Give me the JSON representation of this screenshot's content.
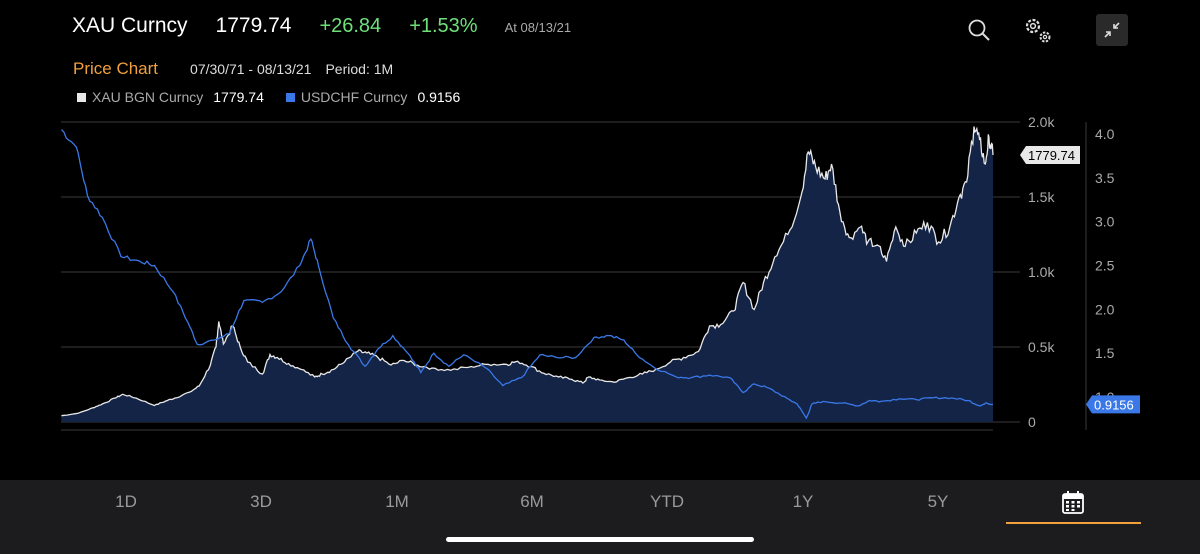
{
  "header": {
    "ticker": "XAU Curncy",
    "last": "1779.74",
    "change": "+26.84",
    "pct_change": "+1.53%",
    "as_of": "At 08/13/21"
  },
  "subheader": {
    "title": "Price Chart",
    "date_range": "07/30/71 - 08/13/21",
    "period": "Period: 1M"
  },
  "legend": [
    {
      "name": "XAU BGN Curncy",
      "value": "1779.74",
      "color": "#e8e8e8"
    },
    {
      "name": "USDCHF Curncy",
      "value": "0.9156",
      "color": "#3a78e8"
    }
  ],
  "chart_data": {
    "type": "line",
    "x_range": [
      1971.58,
      2021.62
    ],
    "grid": "horizontal gridlines",
    "series": [
      {
        "name": "XAU BGN Curncy",
        "axis": "left",
        "filled": true,
        "color": "#e8e8e8",
        "fill": "#132447",
        "ylim": [
          0,
          2000
        ],
        "points": [
          [
            1971.6,
            42
          ],
          [
            1972.5,
            58
          ],
          [
            1973.3,
            95
          ],
          [
            1973.8,
            120
          ],
          [
            1974.5,
            160
          ],
          [
            1974.9,
            185
          ],
          [
            1975.6,
            160
          ],
          [
            1976.6,
            110
          ],
          [
            1977.2,
            140
          ],
          [
            1977.7,
            160
          ],
          [
            1978.5,
            200
          ],
          [
            1979.0,
            240
          ],
          [
            1979.6,
            380
          ],
          [
            1979.9,
            500
          ],
          [
            1980.05,
            670
          ],
          [
            1980.3,
            520
          ],
          [
            1980.8,
            640
          ],
          [
            1981.2,
            500
          ],
          [
            1981.6,
            400
          ],
          [
            1982.4,
            320
          ],
          [
            1982.8,
            450
          ],
          [
            1983.2,
            430
          ],
          [
            1983.8,
            390
          ],
          [
            1984.5,
            350
          ],
          [
            1985.2,
            300
          ],
          [
            1985.6,
            320
          ],
          [
            1986.2,
            350
          ],
          [
            1986.8,
            400
          ],
          [
            1987.5,
            470
          ],
          [
            1988.0,
            460
          ],
          [
            1988.6,
            430
          ],
          [
            1989.3,
            380
          ],
          [
            1990.0,
            410
          ],
          [
            1990.7,
            380
          ],
          [
            1991.5,
            360
          ],
          [
            1992.5,
            345
          ],
          [
            1993.6,
            370
          ],
          [
            1994.5,
            385
          ],
          [
            1995.5,
            385
          ],
          [
            1996.1,
            405
          ],
          [
            1996.8,
            370
          ],
          [
            1997.5,
            325
          ],
          [
            1998.3,
            300
          ],
          [
            1999.0,
            285
          ],
          [
            1999.6,
            260
          ],
          [
            1999.9,
            300
          ],
          [
            2000.5,
            280
          ],
          [
            2001.3,
            265
          ],
          [
            2002.0,
            295
          ],
          [
            2002.8,
            320
          ],
          [
            2003.5,
            350
          ],
          [
            2004.3,
            400
          ],
          [
            2005.0,
            430
          ],
          [
            2005.8,
            470
          ],
          [
            2006.4,
            640
          ],
          [
            2007.0,
            650
          ],
          [
            2007.7,
            740
          ],
          [
            2008.2,
            930
          ],
          [
            2008.8,
            750
          ],
          [
            2009.3,
            930
          ],
          [
            2009.9,
            1100
          ],
          [
            2010.6,
            1250
          ],
          [
            2011.3,
            1500
          ],
          [
            2011.7,
            1800
          ],
          [
            2012.1,
            1700
          ],
          [
            2012.6,
            1620
          ],
          [
            2012.95,
            1720
          ],
          [
            2013.4,
            1400
          ],
          [
            2013.9,
            1230
          ],
          [
            2014.5,
            1300
          ],
          [
            2014.9,
            1200
          ],
          [
            2015.4,
            1180
          ],
          [
            2015.9,
            1070
          ],
          [
            2016.4,
            1300
          ],
          [
            2016.9,
            1170
          ],
          [
            2017.5,
            1260
          ],
          [
            2018.1,
            1330
          ],
          [
            2018.7,
            1200
          ],
          [
            2019.3,
            1300
          ],
          [
            2019.8,
            1500
          ],
          [
            2020.2,
            1600
          ],
          [
            2020.6,
            1970
          ],
          [
            2020.9,
            1880
          ],
          [
            2021.2,
            1720
          ],
          [
            2021.4,
            1900
          ],
          [
            2021.62,
            1780
          ]
        ]
      },
      {
        "name": "USDCHF Curncy",
        "axis": "right",
        "filled": false,
        "color": "#3a78e8",
        "ylim": [
          0.9,
          4.1
        ],
        "points": [
          [
            1971.6,
            4.05
          ],
          [
            1972.4,
            3.85
          ],
          [
            1973.0,
            3.3
          ],
          [
            1973.8,
            3.05
          ],
          [
            1974.8,
            2.6
          ],
          [
            1975.8,
            2.55
          ],
          [
            1976.6,
            2.5
          ],
          [
            1977.6,
            2.2
          ],
          [
            1978.4,
            1.85
          ],
          [
            1978.9,
            1.6
          ],
          [
            1979.8,
            1.65
          ],
          [
            1980.6,
            1.72
          ],
          [
            1981.4,
            2.1
          ],
          [
            1982.4,
            2.08
          ],
          [
            1983.4,
            2.2
          ],
          [
            1984.4,
            2.5
          ],
          [
            1985.0,
            2.8
          ],
          [
            1985.4,
            2.5
          ],
          [
            1986.2,
            1.9
          ],
          [
            1987.0,
            1.6
          ],
          [
            1987.9,
            1.35
          ],
          [
            1988.6,
            1.55
          ],
          [
            1989.4,
            1.7
          ],
          [
            1990.2,
            1.5
          ],
          [
            1990.9,
            1.28
          ],
          [
            1991.6,
            1.5
          ],
          [
            1992.4,
            1.35
          ],
          [
            1993.2,
            1.48
          ],
          [
            1994.4,
            1.33
          ],
          [
            1995.3,
            1.13
          ],
          [
            1996.3,
            1.22
          ],
          [
            1997.3,
            1.48
          ],
          [
            1998.2,
            1.45
          ],
          [
            1999.2,
            1.45
          ],
          [
            2000.2,
            1.68
          ],
          [
            2001.0,
            1.7
          ],
          [
            2001.8,
            1.65
          ],
          [
            2002.5,
            1.48
          ],
          [
            2003.4,
            1.34
          ],
          [
            2004.6,
            1.23
          ],
          [
            2005.4,
            1.22
          ],
          [
            2006.4,
            1.25
          ],
          [
            2007.5,
            1.22
          ],
          [
            2008.2,
            1.05
          ],
          [
            2008.8,
            1.15
          ],
          [
            2009.6,
            1.1
          ],
          [
            2010.6,
            0.98
          ],
          [
            2011.1,
            0.92
          ],
          [
            2011.6,
            0.76
          ],
          [
            2011.9,
            0.92
          ],
          [
            2012.5,
            0.95
          ],
          [
            2013.5,
            0.93
          ],
          [
            2014.4,
            0.9
          ],
          [
            2015.0,
            0.96
          ],
          [
            2015.6,
            0.95
          ],
          [
            2016.6,
            0.98
          ],
          [
            2017.5,
            0.97
          ],
          [
            2018.4,
            0.99
          ],
          [
            2019.4,
            0.99
          ],
          [
            2020.3,
            0.96
          ],
          [
            2020.9,
            0.9
          ],
          [
            2021.3,
            0.93
          ],
          [
            2021.62,
            0.9156
          ]
        ]
      }
    ],
    "y_left_ticks": [
      "0",
      "0.5k",
      "1.0k",
      "1.5k",
      "2.0k"
    ],
    "y_left_values": [
      0,
      500,
      1000,
      1500,
      2000
    ],
    "y_right_ticks": [
      "1.0",
      "1.5",
      "2.0",
      "2.5",
      "3.0",
      "3.5",
      "4.0"
    ],
    "y_right_values": [
      1.0,
      1.5,
      2.0,
      2.5,
      3.0,
      3.5,
      4.0
    ],
    "last_labels": {
      "left": "1779.74",
      "right": "0.9156"
    }
  },
  "tabs": [
    "1D",
    "3D",
    "1M",
    "6M",
    "YTD",
    "1Y",
    "5Y"
  ],
  "colors": {
    "accent": "#f0a03c",
    "positive": "#6ee07a",
    "series_blue": "#3a78e8"
  }
}
